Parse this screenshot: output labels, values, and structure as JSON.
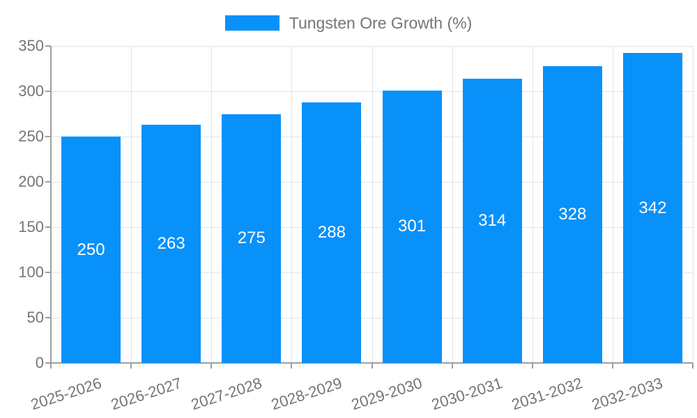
{
  "chart_data": {
    "type": "bar",
    "title": "",
    "legend": "Tungsten Ore Growth (%)",
    "legend_position": "top-center",
    "categories": [
      "2025-2026",
      "2026-2027",
      "2027-2028",
      "2028-2029",
      "2029-2030",
      "2030-2031",
      "2031-2032",
      "2032-2033"
    ],
    "values": [
      250,
      263,
      275,
      288,
      301,
      314,
      328,
      342
    ],
    "xlabel": "",
    "ylabel": "",
    "ylim": [
      0,
      350
    ],
    "ytick_step": 50,
    "grid": "on",
    "bar_color": "#0991FA",
    "bar_label_color": "#ffffff",
    "axis_text_color": "#757575",
    "axis_line_color": "#9e9e9e",
    "grid_line_color": "#e3e3e3",
    "background_color": "#ffffff"
  }
}
